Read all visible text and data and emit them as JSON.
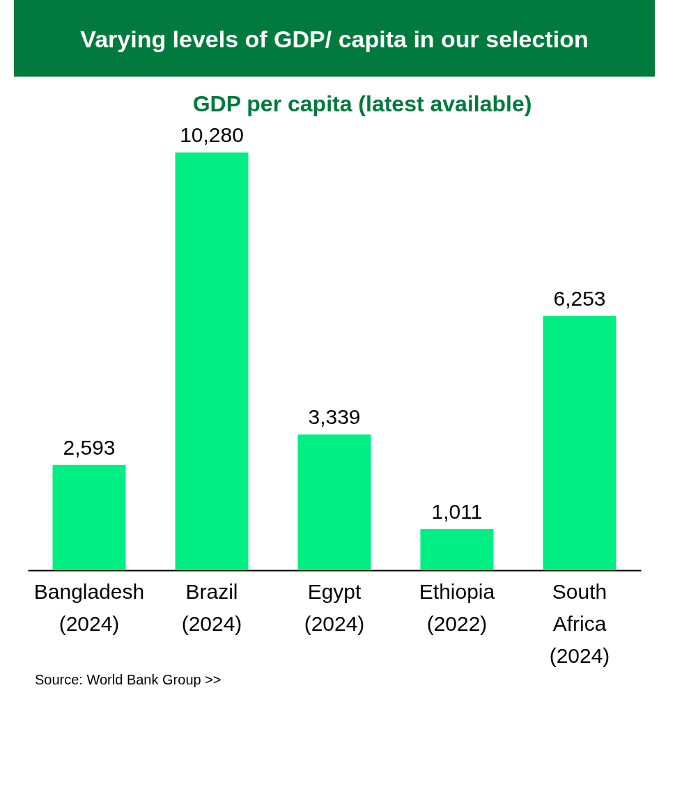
{
  "chart_data": {
    "type": "bar",
    "title": "Varying levels of GDP/ capita in our selection",
    "subtitle": "GDP per capita (latest available)",
    "categories": [
      "Bangladesh (2024)",
      "Brazil (2024)",
      "Egypt (2024)",
      "Ethiopia (2022)",
      "South Africa (2024)"
    ],
    "values": [
      2593,
      10280,
      3339,
      1011,
      6253
    ],
    "value_labels": [
      "2,593",
      "10,280",
      "3,339",
      "1,011",
      "6,253"
    ],
    "color": "#00ee82",
    "grid": false,
    "annotations": [
      "Source: World Bank Group >>"
    ]
  }
}
